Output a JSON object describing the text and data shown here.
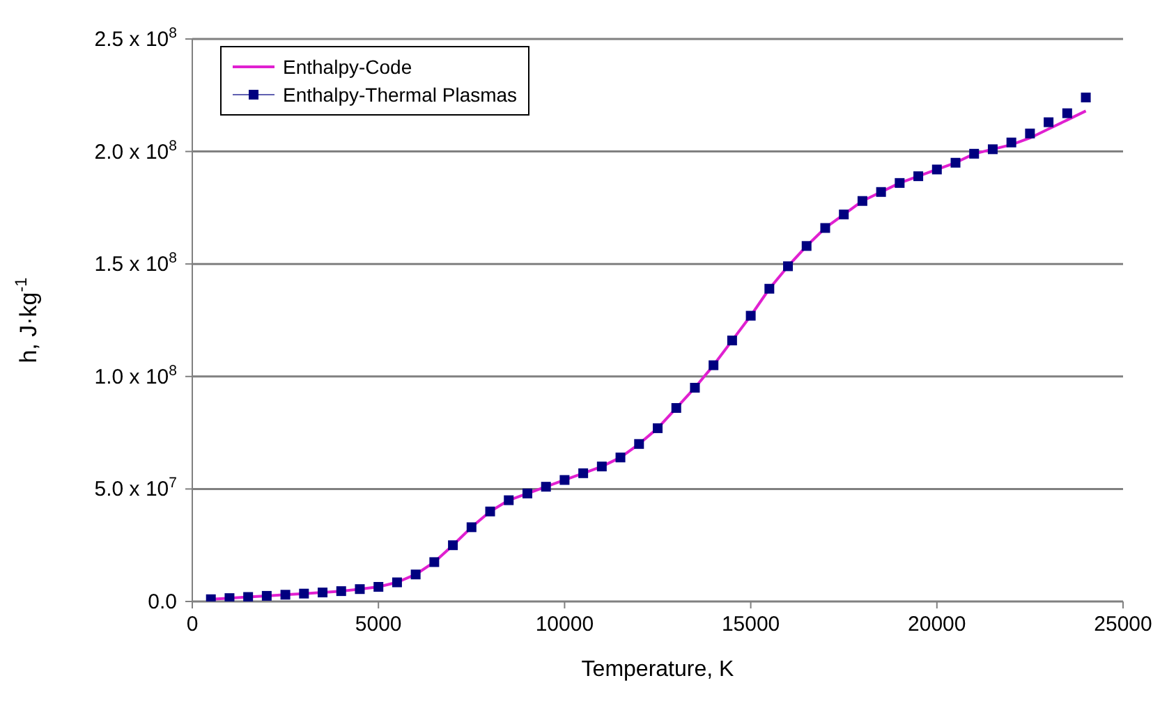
{
  "chart_data": {
    "type": "line",
    "xlabel": "Temperature, K",
    "ylabel": "h, J·kg$^{-1}$",
    "x": [
      500,
      1000,
      1500,
      2000,
      2500,
      3000,
      3500,
      4000,
      4500,
      5000,
      5500,
      6000,
      6500,
      7000,
      7500,
      8000,
      8500,
      9000,
      9500,
      10000,
      10500,
      11000,
      11500,
      12000,
      12500,
      13000,
      13500,
      14000,
      14500,
      15000,
      15500,
      16000,
      16500,
      17000,
      17500,
      18000,
      18500,
      19000,
      19500,
      20000,
      20500,
      21000,
      21500,
      22000,
      22500,
      23000,
      23500,
      24000
    ],
    "series": [
      {
        "name": "Enthalpy-Code",
        "color": "#e020d0",
        "marker": "none",
        "values": [
          1000000,
          1500000,
          2000000,
          2500000,
          3000000,
          3500000,
          4000000,
          4600000,
          5500000,
          6500000,
          8500000,
          12000000,
          17500000,
          25000000,
          33000000,
          40000000,
          45000000,
          48000000,
          51000000,
          54000000,
          57000000,
          60000000,
          64000000,
          70000000,
          77000000,
          86000000,
          95000000,
          105000000,
          116000000,
          127000000,
          139000000,
          149000000,
          158000000,
          166000000,
          172000000,
          178000000,
          182000000,
          186000000,
          189000000,
          192000000,
          195000000,
          199000000,
          201000000,
          203000000,
          206000000,
          210000000,
          214000000,
          218000000
        ]
      },
      {
        "name": "Enthalpy-Thermal Plasmas",
        "color": "#000080",
        "type": "scatter",
        "marker": "square",
        "values": [
          1000000,
          1500000,
          2000000,
          2500000,
          3000000,
          3500000,
          4000000,
          4600000,
          5500000,
          6500000,
          8500000,
          12000000,
          17500000,
          25000000,
          33000000,
          40000000,
          45000000,
          48000000,
          51000000,
          54000000,
          57000000,
          60000000,
          64000000,
          70000000,
          77000000,
          86000000,
          95000000,
          105000000,
          116000000,
          127000000,
          139000000,
          149000000,
          158000000,
          166000000,
          172000000,
          178000000,
          182000000,
          186000000,
          189000000,
          192000000,
          195000000,
          199000000,
          201000000,
          204000000,
          208000000,
          213000000,
          217000000,
          224000000
        ]
      }
    ],
    "xlim": [
      0,
      25000
    ],
    "xticks": [
      0,
      5000,
      10000,
      15000,
      20000,
      25000
    ],
    "ylim": [
      0,
      250000000
    ],
    "yticks": [
      {
        "value": 0,
        "label": "0.0"
      },
      {
        "value": 50000000,
        "label": "5.0 x 10$^{7}$"
      },
      {
        "value": 100000000,
        "label": "1.0 x 10$^{8}$"
      },
      {
        "value": 150000000,
        "label": "1.5 x 10$^{8}$"
      },
      {
        "value": 200000000,
        "label": "2.0 x 10$^{8}$"
      },
      {
        "value": 250000000,
        "label": "2.5 x 10$^{8}$"
      }
    ],
    "grid": "y",
    "legend": "top left"
  }
}
